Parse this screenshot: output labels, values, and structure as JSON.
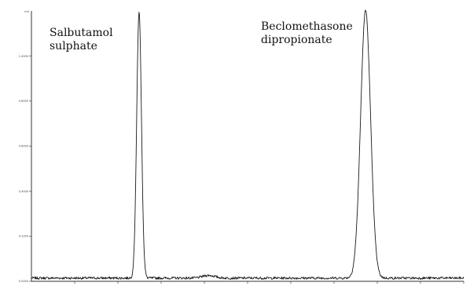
{
  "chart_data": {
    "type": "line",
    "title": "",
    "xlabel": "",
    "ylabel": "",
    "xlim": [
      0,
      100
    ],
    "ylim": [
      0,
      100
    ],
    "baseline": 1.2,
    "noise_amplitude": 0.9,
    "grid": false,
    "peaks": [
      {
        "name": "Salbutamol sulphate",
        "label_lines": [
          "Salbutamol",
          "sulphate"
        ],
        "x": 24.9,
        "height": 98.6,
        "width": 0.55
      },
      {
        "name": "Beclomethasone dipropionate",
        "label_lines": [
          "Beclomethasone",
          "dipropionate"
        ],
        "x": 77.3,
        "height": 99.0,
        "width": 1.15
      },
      {
        "name": "minor bump",
        "label_lines": [],
        "x": 41.0,
        "height": 1.0,
        "width": 1.4
      }
    ],
    "series": [
      {
        "values": []
      }
    ],
    "y_axis_top_label": "mV",
    "y_tick_labels": [
      "1.0000",
      "0.8000",
      "0.6000",
      "0.4000",
      "0.2000",
      "0.0000"
    ],
    "y_tick_values": [
      83.3,
      66.7,
      50.0,
      33.3,
      16.7,
      0.0
    ]
  }
}
